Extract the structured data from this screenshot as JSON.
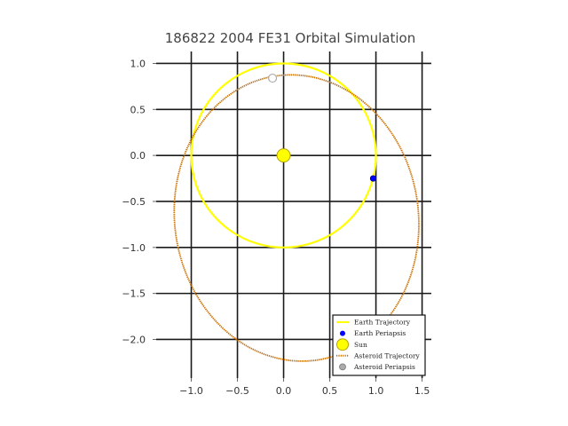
{
  "chart_data": {
    "type": "line",
    "title": "186822 2004 FE31 Orbital Simulation",
    "xlabel": "",
    "ylabel": "",
    "xlim": [
      -1.38,
      1.6
    ],
    "ylim": [
      -2.42,
      1.13
    ],
    "xticks": [
      -1.0,
      -0.5,
      0.0,
      0.5,
      1.0,
      1.5
    ],
    "yticks": [
      1.0,
      0.5,
      0.0,
      -0.5,
      -1.0,
      -1.5,
      -2.0
    ],
    "xtick_labels": [
      "−1.0",
      "−0.5",
      "0.0",
      "0.5",
      "1.0",
      "1.5"
    ],
    "ytick_labels": [
      "1.0",
      "0.5",
      "0.0",
      "−0.5",
      "−1.0",
      "−1.5",
      "−2.0"
    ],
    "grid": true,
    "legend_position": "lower-right",
    "series": [
      {
        "name": "Earth Trajectory",
        "kind": "circle",
        "center": [
          0.0,
          0.0
        ],
        "radius": 1.0,
        "color": "#ffff00"
      },
      {
        "name": "Earth Periapsis",
        "kind": "marker",
        "point": [
          0.97,
          -0.25
        ],
        "color": "#0000ff"
      },
      {
        "name": "Sun",
        "kind": "marker",
        "point": [
          0.0,
          0.0
        ],
        "color": "#ffff00"
      },
      {
        "name": "Asteroid Trajectory",
        "kind": "ellipse",
        "center": [
          0.14,
          -0.68
        ],
        "semi_axes": [
          1.32,
          1.56
        ],
        "rotation_deg": 8,
        "color": "#cc7000"
      },
      {
        "name": "Asteroid Periapsis",
        "kind": "marker",
        "point": [
          -0.12,
          0.84
        ],
        "color": "#aaaaaa"
      }
    ]
  }
}
